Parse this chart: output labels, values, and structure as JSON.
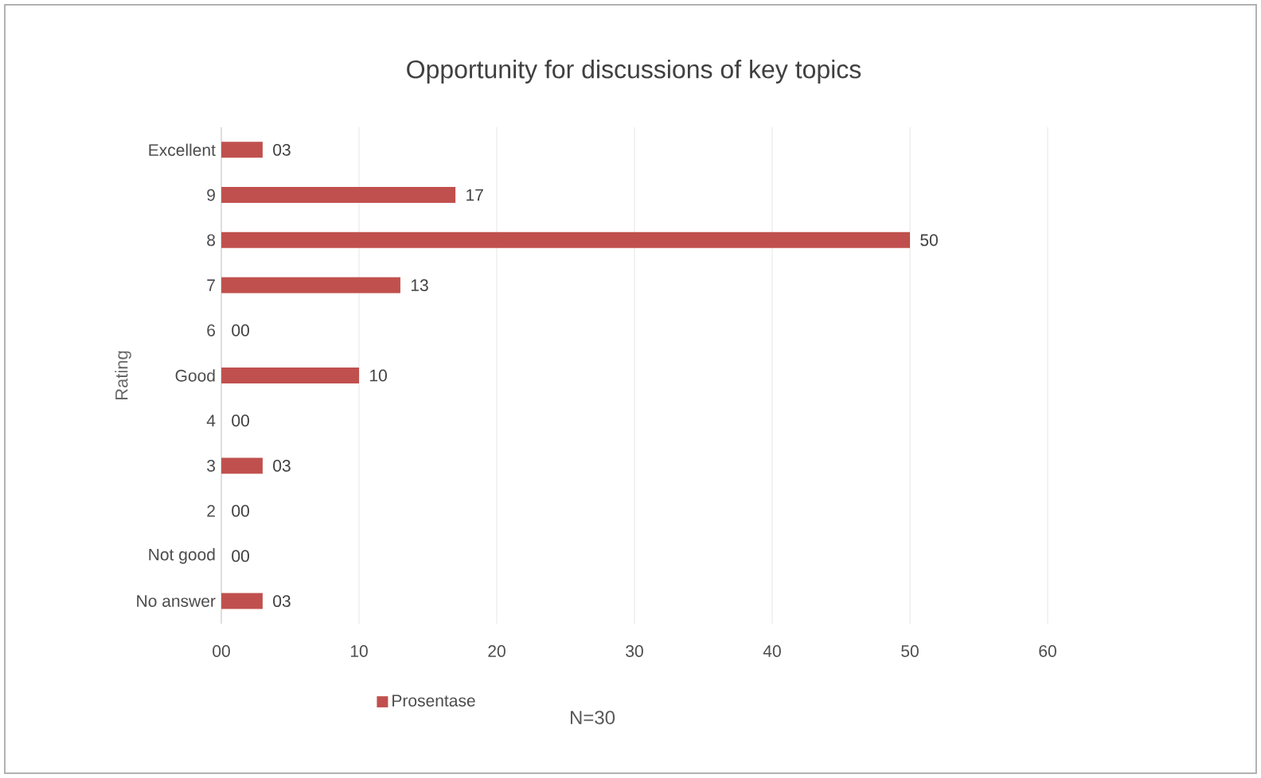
{
  "chart_data": {
    "type": "bar",
    "orientation": "horizontal",
    "title": "Opportunity for discussions of key topics",
    "ylabel": "Rating",
    "categories": [
      "Excellent",
      "9",
      "8",
      "7",
      "6",
      "Good",
      "4",
      "3",
      "2",
      "Not good",
      "No answer"
    ],
    "series": [
      {
        "name": "Prosentase",
        "color": "#c0504d",
        "values": [
          3,
          17,
          50,
          13,
          0,
          10,
          0,
          3,
          0,
          0,
          3
        ],
        "value_labels": [
          "03",
          "17",
          "50",
          "13",
          "00",
          "10",
          "00",
          "03",
          "00",
          "00",
          "03"
        ]
      }
    ],
    "xlim": [
      0,
      60
    ],
    "xticks": [
      {
        "value": 0,
        "label": "00"
      },
      10,
      20,
      30,
      40,
      50,
      60
    ],
    "grid": "x",
    "legend": "bottom",
    "annotations": [
      "N=30"
    ]
  }
}
